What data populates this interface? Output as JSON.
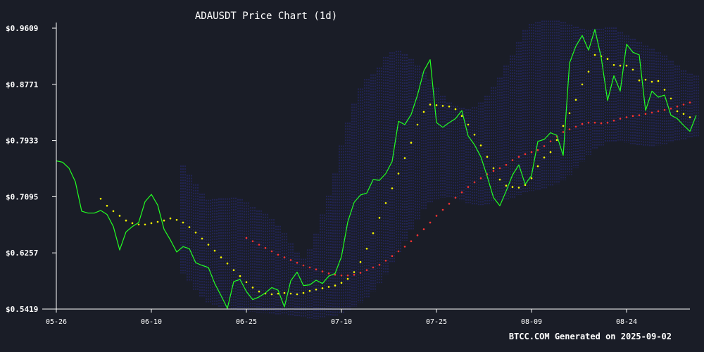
{
  "chart_data": {
    "type": "line",
    "title": "ADAUSDT Price Chart (1d)",
    "footer": "BTCC.COM Generated on 2025-09-02",
    "xlabel": "",
    "ylabel": "",
    "x_start": "05-26",
    "x_ticks": [
      {
        "day": 0,
        "label": "05-26"
      },
      {
        "day": 15,
        "label": "06-10"
      },
      {
        "day": 30,
        "label": "06-25"
      },
      {
        "day": 45,
        "label": "07-10"
      },
      {
        "day": 60,
        "label": "07-25"
      },
      {
        "day": 75,
        "label": "08-09"
      },
      {
        "day": 90,
        "label": "08-24"
      }
    ],
    "y_ticks": [
      {
        "value": 0.5419,
        "label": "$0.5419"
      },
      {
        "value": 0.6257,
        "label": "$0.6257"
      },
      {
        "value": 0.7095,
        "label": "$0.7095"
      },
      {
        "value": 0.7933,
        "label": "$0.7933"
      },
      {
        "value": 0.8771,
        "label": "$0.8771"
      },
      {
        "value": 0.9609,
        "label": "$0.9609"
      }
    ],
    "ylim": [
      0.5419,
      0.9609
    ],
    "xlim_days": [
      0,
      100
    ],
    "grid": false,
    "legend": "none",
    "colors": {
      "background": "#1a1d27",
      "price": "#22ff22",
      "ma20": "#ffff00",
      "ma50": "#ff3333",
      "band": "#2a2d8c",
      "axis": "#ffffff"
    },
    "series": [
      {
        "key": "price",
        "values": [
          0.763,
          0.761,
          0.752,
          0.732,
          0.688,
          0.685,
          0.685,
          0.689,
          0.683,
          0.665,
          0.63,
          0.657,
          0.665,
          0.671,
          0.702,
          0.713,
          0.697,
          0.661,
          0.645,
          0.627,
          0.635,
          0.632,
          0.611,
          0.607,
          0.604,
          0.58,
          0.562,
          0.543,
          0.583,
          0.586,
          0.568,
          0.556,
          0.56,
          0.566,
          0.574,
          0.57,
          0.545,
          0.584,
          0.597,
          0.577,
          0.578,
          0.585,
          0.58,
          0.591,
          0.595,
          0.62,
          0.672,
          0.701,
          0.712,
          0.715,
          0.735,
          0.734,
          0.744,
          0.762,
          0.822,
          0.817,
          0.832,
          0.861,
          0.897,
          0.914,
          0.82,
          0.813,
          0.82,
          0.826,
          0.838,
          0.8,
          0.787,
          0.769,
          0.74,
          0.708,
          0.696,
          0.718,
          0.742,
          0.757,
          0.728,
          0.741,
          0.792,
          0.795,
          0.805,
          0.801,
          0.771,
          0.909,
          0.934,
          0.95,
          0.928,
          0.959,
          0.917,
          0.853,
          0.89,
          0.867,
          0.937,
          0.925,
          0.921,
          0.838,
          0.867,
          0.858,
          0.861,
          0.831,
          0.826,
          0.816,
          0.807,
          0.831
        ],
        "x_day_start": 0
      },
      {
        "key": "ma20",
        "x_day_start": 7,
        "values": [
          0.7065,
          0.696,
          0.688,
          0.681,
          0.674,
          0.67,
          0.668,
          0.668,
          0.67,
          0.672,
          0.674,
          0.677,
          0.675,
          0.671,
          0.664,
          0.656,
          0.647,
          0.638,
          0.629,
          0.619,
          0.61,
          0.6,
          0.591,
          0.582,
          0.574,
          0.568,
          0.565,
          0.564,
          0.565,
          0.566,
          0.565,
          0.564,
          0.566,
          0.569,
          0.571,
          0.573,
          0.575,
          0.577,
          0.581,
          0.587,
          0.597,
          0.612,
          0.632,
          0.655,
          0.678,
          0.7,
          0.722,
          0.744,
          0.767,
          0.79,
          0.817,
          0.836,
          0.847,
          0.846,
          0.845,
          0.844,
          0.84,
          0.83,
          0.817,
          0.802,
          0.786,
          0.769,
          0.752,
          0.735,
          0.726,
          0.724,
          0.723,
          0.727,
          0.737,
          0.755,
          0.768,
          0.776,
          0.794,
          0.815,
          0.834,
          0.854,
          0.877,
          0.896,
          0.921,
          0.919,
          0.915,
          0.906,
          0.905,
          0.905,
          0.899,
          0.883,
          0.884,
          0.881,
          0.882,
          0.869,
          0.856,
          0.837,
          0.833,
          0.828
        ]
      },
      {
        "key": "ma50",
        "x_day_start": 30,
        "values": [
          0.648,
          0.643,
          0.638,
          0.633,
          0.628,
          0.623,
          0.619,
          0.615,
          0.611,
          0.607,
          0.604,
          0.601,
          0.598,
          0.595,
          0.593,
          0.592,
          0.592,
          0.593,
          0.596,
          0.6,
          0.604,
          0.608,
          0.614,
          0.621,
          0.628,
          0.635,
          0.643,
          0.652,
          0.661,
          0.671,
          0.681,
          0.69,
          0.699,
          0.708,
          0.716,
          0.724,
          0.731,
          0.737,
          0.743,
          0.748,
          0.752,
          0.757,
          0.764,
          0.769,
          0.773,
          0.776,
          0.779,
          0.785,
          0.792,
          0.799,
          0.806,
          0.81,
          0.814,
          0.818,
          0.82,
          0.82,
          0.819,
          0.82,
          0.823,
          0.826,
          0.828,
          0.83,
          0.831,
          0.833,
          0.835,
          0.837,
          0.839,
          0.841,
          0.844,
          0.847,
          0.85
        ]
      }
    ],
    "bollinger": {
      "x_day_start": 20,
      "upper": [
        0.756,
        0.742,
        0.728,
        0.714,
        0.705,
        0.706,
        0.707,
        0.707,
        0.708,
        0.706,
        0.701,
        0.694,
        0.689,
        0.684,
        0.676,
        0.666,
        0.655,
        0.64,
        0.626,
        0.617,
        0.631,
        0.654,
        0.683,
        0.711,
        0.744,
        0.786,
        0.82,
        0.848,
        0.871,
        0.885,
        0.892,
        0.902,
        0.918,
        0.925,
        0.927,
        0.922,
        0.915,
        0.905,
        0.895,
        0.884,
        0.872,
        0.86,
        0.85,
        0.845,
        0.842,
        0.84,
        0.843,
        0.85,
        0.86,
        0.873,
        0.887,
        0.905,
        0.92,
        0.94,
        0.958,
        0.967,
        0.97,
        0.972,
        0.972,
        0.972,
        0.97,
        0.966,
        0.963,
        0.96,
        0.958,
        0.96,
        0.96,
        0.962,
        0.962,
        0.955,
        0.95,
        0.945,
        0.94,
        0.935,
        0.93,
        0.925,
        0.92,
        0.912,
        0.905,
        0.898,
        0.893,
        0.89
      ],
      "lower": [
        0.595,
        0.582,
        0.57,
        0.56,
        0.552,
        0.548,
        0.545,
        0.543,
        0.541,
        0.54,
        0.539,
        0.538,
        0.537,
        0.536,
        0.535,
        0.534,
        0.533,
        0.532,
        0.531,
        0.53,
        0.528,
        0.527,
        0.528,
        0.53,
        0.532,
        0.536,
        0.54,
        0.545,
        0.551,
        0.558,
        0.568,
        0.58,
        0.594,
        0.61,
        0.627,
        0.644,
        0.661,
        0.676,
        0.69,
        0.7,
        0.706,
        0.708,
        0.708,
        0.706,
        0.703,
        0.7,
        0.698,
        0.697,
        0.698,
        0.7,
        0.702,
        0.705,
        0.708,
        0.712,
        0.716,
        0.718,
        0.72,
        0.722,
        0.725,
        0.728,
        0.734,
        0.742,
        0.752,
        0.762,
        0.772,
        0.78,
        0.786,
        0.79,
        0.792,
        0.791,
        0.79,
        0.788,
        0.786,
        0.785,
        0.785,
        0.786,
        0.788,
        0.79,
        0.792,
        0.795,
        0.797,
        0.798
      ]
    }
  }
}
